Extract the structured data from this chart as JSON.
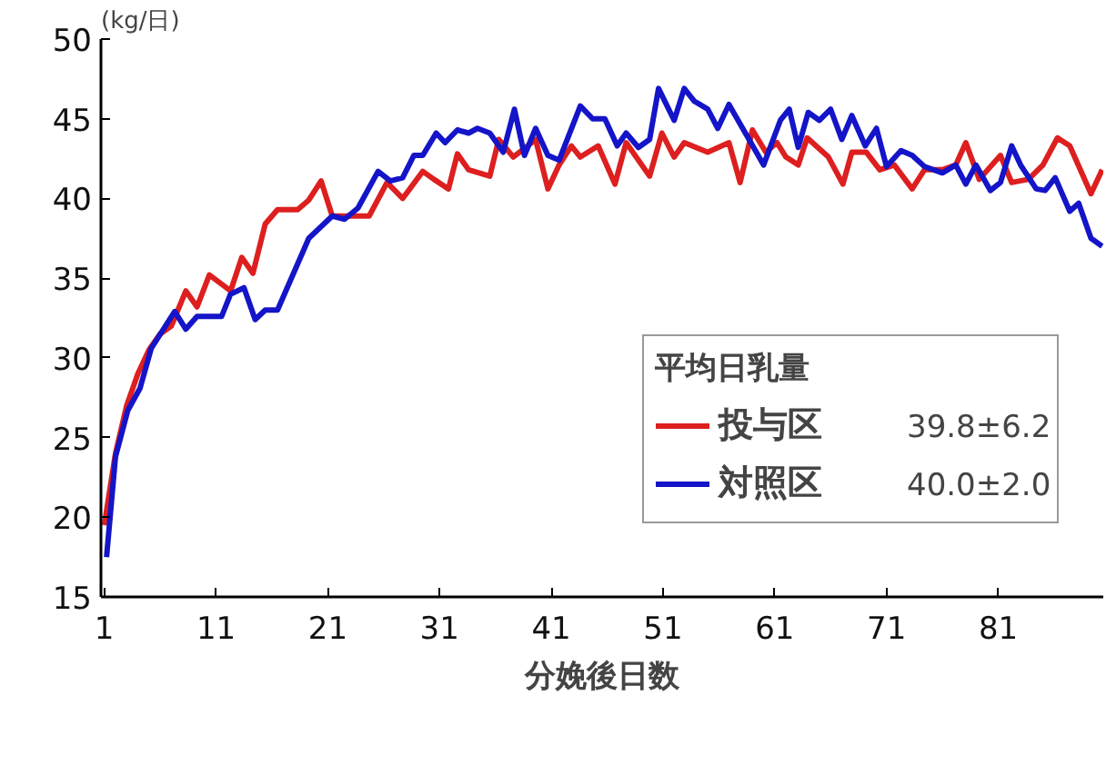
{
  "chart_data": {
    "type": "line",
    "xlabel": "分娩後日数",
    "ylabel": "(kg/日)",
    "legend_title": "平均日乳量",
    "legend": "bottom right",
    "xlim": [
      0.7,
      90.4
    ],
    "ylim": [
      15,
      50
    ],
    "xticks": [
      1,
      11,
      21,
      31,
      41,
      51,
      61,
      71,
      81
    ],
    "yticks": [
      15,
      20,
      25,
      30,
      35,
      40,
      45,
      50
    ],
    "grid": false,
    "marker": "none",
    "line_style": "solid",
    "annotations": [
      "39.8±6.2",
      "40.0±2.0"
    ],
    "series": [
      {
        "name": "投与区",
        "color": "#dd1f1f",
        "x": [
          1,
          2,
          3,
          4,
          5,
          6,
          7,
          8.3,
          9.3,
          10.4,
          12.3,
          13.3,
          14.3,
          15.4,
          16.5,
          18.3,
          19.3,
          20.4,
          21.4,
          24.7,
          26.3,
          27.7,
          29.5,
          30.5,
          31.8,
          32.6,
          33.6,
          35.5,
          36.3,
          37.6,
          39.6,
          40.7,
          41.7,
          42.8,
          43.6,
          45.2,
          46.7,
          47.7,
          49.8,
          50.9,
          52,
          52.9,
          55,
          56.9,
          57.9,
          59,
          60.2,
          61.2,
          62,
          63.1,
          63.9,
          65.8,
          67.1,
          67.9,
          69.2,
          70.4,
          71.7,
          73.3,
          74.4,
          76,
          77.2,
          78.1,
          79.3,
          81.2,
          82.2,
          83.7,
          85,
          86.3,
          87.4,
          89.3,
          90.3
        ],
        "values": [
          19.5,
          24,
          27,
          29,
          30.5,
          31.5,
          32,
          34.2,
          33.2,
          35.2,
          34.2,
          36.3,
          35.3,
          38.4,
          39.3,
          39.3,
          39.9,
          41.1,
          38.9,
          38.9,
          41,
          40,
          41.7,
          41.2,
          40.6,
          42.8,
          41.8,
          41.4,
          43.7,
          42.6,
          43.7,
          40.6,
          42.1,
          43.3,
          42.6,
          43.3,
          40.9,
          43.5,
          41.4,
          44.1,
          42.6,
          43.5,
          42.9,
          43.5,
          41,
          44.3,
          42.9,
          43.5,
          42.6,
          42.1,
          43.8,
          42.6,
          40.9,
          42.9,
          42.9,
          41.8,
          42.1,
          40.6,
          41.8,
          41.8,
          42.1,
          43.5,
          41.2,
          42.7,
          41,
          41.2,
          42.1,
          43.8,
          43.3,
          40.3,
          41.8
        ]
      },
      {
        "name": "対照区",
        "color": "#1414c8",
        "x": [
          1.2,
          2,
          3.1,
          4.2,
          5.2,
          7.3,
          8.3,
          9.3,
          11.5,
          12.3,
          13.5,
          14.5,
          15.4,
          16.5,
          19.3,
          21.4,
          22.5,
          23.7,
          25.5,
          26.6,
          27.7,
          28.7,
          29.5,
          30.7,
          31.5,
          32.6,
          33.6,
          34.4,
          35.5,
          36.7,
          37.7,
          38.6,
          39.6,
          40.7,
          41.7,
          43.6,
          44.7,
          45.8,
          46.9,
          47.7,
          48.8,
          49.8,
          50.6,
          52,
          52.9,
          53.8,
          55,
          55.9,
          56.9,
          58.7,
          60,
          61.5,
          62.3,
          63.1,
          64,
          65,
          66,
          67,
          67.9,
          69.1,
          70.1,
          71,
          72.3,
          73.3,
          74.4,
          76,
          77.2,
          78.1,
          79,
          80.3,
          81.2,
          82.2,
          83,
          84.4,
          85.2,
          86.1,
          87.4,
          88.2,
          89.3,
          90.3
        ],
        "values": [
          17.5,
          23.8,
          26.7,
          28.1,
          30.6,
          32.9,
          31.8,
          32.6,
          32.6,
          34,
          34.4,
          32.4,
          33,
          33,
          37.5,
          38.9,
          38.7,
          39.4,
          41.7,
          41.1,
          41.3,
          42.7,
          42.7,
          44.1,
          43.5,
          44.3,
          44.1,
          44.4,
          44.1,
          42.9,
          45.6,
          42.7,
          44.4,
          42.7,
          42.4,
          45.8,
          45,
          45,
          43.3,
          44.1,
          43.2,
          43.7,
          46.9,
          44.9,
          46.9,
          46.1,
          45.6,
          44.4,
          45.9,
          43.7,
          42.1,
          44.9,
          45.6,
          43.2,
          45.4,
          44.9,
          45.6,
          43.7,
          45.2,
          43.3,
          44.4,
          42,
          43,
          42.7,
          42,
          41.6,
          42.1,
          40.9,
          42.1,
          40.5,
          41,
          43.3,
          42.1,
          40.6,
          40.5,
          41.3,
          39.2,
          39.7,
          37.5,
          37
        ]
      }
    ]
  }
}
